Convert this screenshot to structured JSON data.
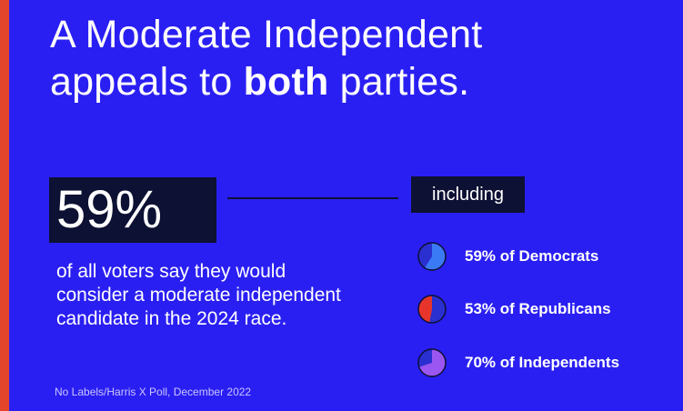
{
  "headline": {
    "line1": "A Moderate Independent",
    "line2_prefix": "appeals to ",
    "line2_bold": "both",
    "line2_suffix": " parties."
  },
  "big_stat": "59%",
  "description": "of all voters say they would consider a moderate independent candidate in the 2024 race.",
  "including_label": "including",
  "source": "No Labels/Harris X Poll, December 2022",
  "colors": {
    "background": "#2a1ff2",
    "accent_bar": "#e3452b",
    "dark_box": "#0d1133"
  },
  "chart_data": {
    "type": "pie",
    "series": [
      {
        "label": "59% of Democrats",
        "value": 59,
        "fill": "#3b7af5",
        "remainder": "#2a2fd0"
      },
      {
        "label": "53% of Republicans",
        "value": 53,
        "fill": "#2a2fd0",
        "remainder": "#e8352c"
      },
      {
        "label": "70% of Independents",
        "value": 70,
        "fill": "#9b55f0",
        "remainder": "#2a2fd0"
      }
    ]
  }
}
